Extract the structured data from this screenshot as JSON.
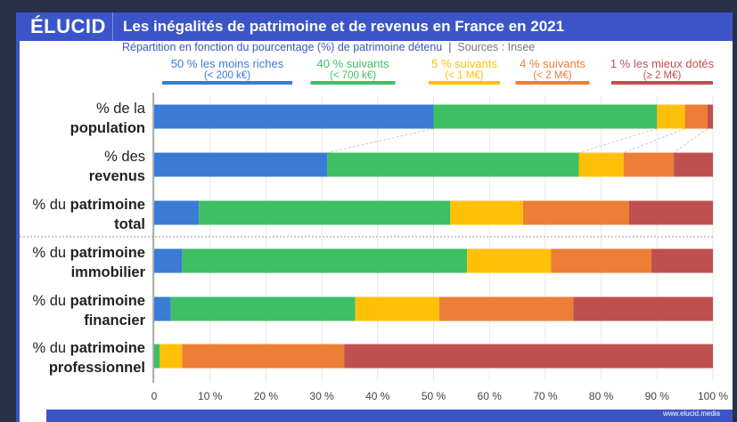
{
  "header": {
    "logo": "ÉLUCID",
    "title": "Les inégalités de patrimoine et de revenus en France en 2021"
  },
  "subtitle": {
    "text": "Répartition en fonction du pourcentage (%) de patrimoine détenu",
    "sources": "Sources : Insee"
  },
  "footer": {
    "url": "www.elucid.media"
  },
  "chart_data": {
    "type": "bar",
    "orientation": "horizontal-stacked",
    "series": [
      {
        "name": "50 % les moins riches",
        "sub": "(< 200 k€)",
        "color": "#3a7bd5"
      },
      {
        "name": "40 % suivants",
        "sub": "(< 700 k€)",
        "color": "#3dbf63"
      },
      {
        "name": "5 % suivants",
        "sub": "(< 1 M€)",
        "color": "#ffc107"
      },
      {
        "name": "4 % suivants",
        "sub": "(< 2 M€)",
        "color": "#ee7d35"
      },
      {
        "name": "1 % les mieux dotés",
        "sub": "(≥ 2 M€)",
        "color": "#c0504f"
      }
    ],
    "categories": [
      {
        "pre": "% de la",
        "bold": "population",
        "values": [
          50,
          40,
          5,
          4,
          1
        ]
      },
      {
        "pre": "% des",
        "bold": "revenus",
        "values": [
          31,
          45,
          8,
          9,
          7
        ]
      },
      {
        "pre": "% du ",
        "bold": "patrimoine",
        "line2": "total",
        "values": [
          8,
          45,
          13,
          19,
          15
        ]
      },
      {
        "pre": "% du ",
        "bold": "patrimoine",
        "line2": "immobilier",
        "values": [
          5,
          51,
          15,
          18,
          11
        ]
      },
      {
        "pre": "% du ",
        "bold": "patrimoine",
        "line2": "financier",
        "values": [
          3,
          33,
          15,
          24,
          25
        ]
      },
      {
        "pre": "% du ",
        "bold": "patrimoine",
        "line2": "professionnel",
        "values": [
          0,
          1,
          4,
          29,
          66
        ]
      }
    ],
    "xticks": [
      "0",
      "10 %",
      "20 %",
      "30 %",
      "40 %",
      "50 %",
      "60 %",
      "70 %",
      "80 %",
      "90 %",
      "100 %"
    ],
    "xlim": [
      0,
      100
    ],
    "grid": true,
    "legend": "top"
  }
}
